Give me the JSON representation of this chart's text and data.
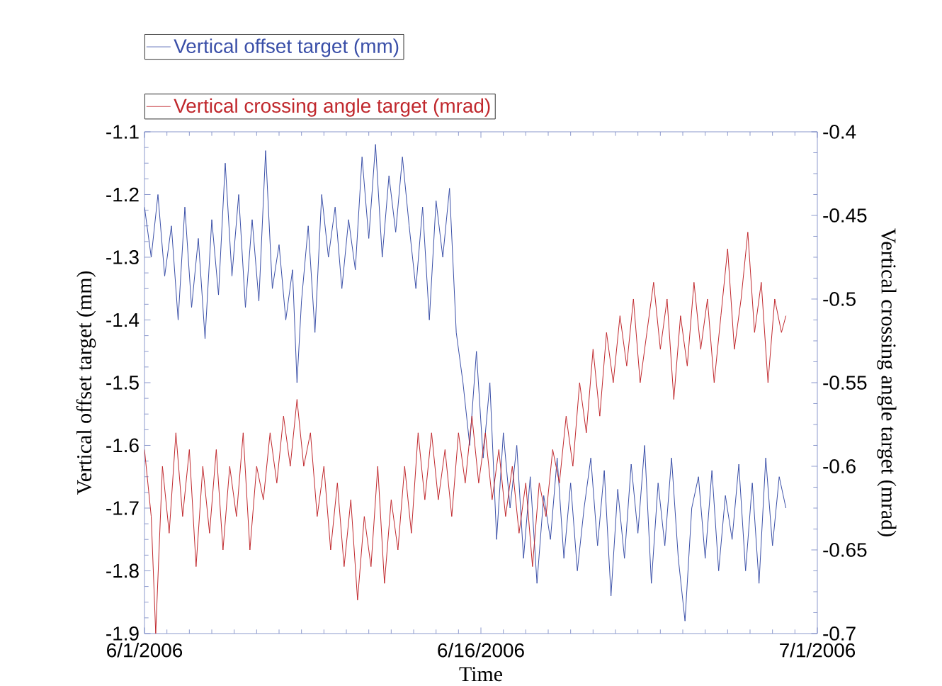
{
  "chart_data": {
    "type": "line",
    "xlabel": "Time",
    "ylabel": "Vertical offset target (mm)",
    "y2label": "Vertical crossing angle target (mrad)",
    "xlim": [
      "2006-06-01",
      "2006-07-01"
    ],
    "xticks": [
      {
        "value": "2006-06-01",
        "label": "6/1/2006"
      },
      {
        "value": "2006-06-16",
        "label": "6/16/2006"
      },
      {
        "value": "2006-07-01",
        "label": "7/1/2006"
      }
    ],
    "ylim": [
      -1.9,
      -1.1
    ],
    "yticks": [
      -1.9,
      -1.8,
      -1.7,
      -1.6,
      -1.5,
      -1.4,
      -1.3,
      -1.2,
      -1.1
    ],
    "y2lim": [
      -0.7,
      -0.4
    ],
    "y2ticks": [
      -0.7,
      -0.65,
      -0.6,
      -0.55,
      -0.5,
      -0.45,
      -0.4
    ],
    "legend": "top left",
    "marker": "none",
    "series": [
      {
        "name": "Vertical offset target (mm)",
        "color": "#3a4fa8",
        "x": [
          "2006-06-01T00:00",
          "2006-06-01T07:12",
          "2006-06-01T14:24",
          "2006-06-01T21:36",
          "2006-06-02T04:48",
          "2006-06-02T12:00",
          "2006-06-02T19:12",
          "2006-06-03T02:24",
          "2006-06-03T09:36",
          "2006-06-03T16:48",
          "2006-06-04T00:00",
          "2006-06-04T07:12",
          "2006-06-04T14:24",
          "2006-06-04T21:36",
          "2006-06-05T04:48",
          "2006-06-05T12:00",
          "2006-06-05T19:12",
          "2006-06-06T02:24",
          "2006-06-06T09:36",
          "2006-06-06T16:48",
          "2006-06-07T00:00",
          "2006-06-07T07:12",
          "2006-06-07T14:24",
          "2006-06-07T19:12",
          "2006-06-08T00:00",
          "2006-06-08T07:12",
          "2006-06-08T14:24",
          "2006-06-08T21:36",
          "2006-06-09T04:48",
          "2006-06-09T12:00",
          "2006-06-09T19:12",
          "2006-06-10T02:24",
          "2006-06-10T09:36",
          "2006-06-10T16:48",
          "2006-06-11T00:00",
          "2006-06-11T07:12",
          "2006-06-11T14:24",
          "2006-06-11T21:36",
          "2006-06-12T04:48",
          "2006-06-12T12:00",
          "2006-06-12T19:12",
          "2006-06-13T02:24",
          "2006-06-13T09:36",
          "2006-06-13T16:48",
          "2006-06-14T00:00",
          "2006-06-14T07:12",
          "2006-06-14T14:24",
          "2006-06-14T21:36",
          "2006-06-15T04:48",
          "2006-06-15T12:00",
          "2006-06-15T19:12",
          "2006-06-16T02:24",
          "2006-06-16T09:36",
          "2006-06-16T16:48",
          "2006-06-17T00:00",
          "2006-06-17T07:12",
          "2006-06-17T14:24",
          "2006-06-17T21:36",
          "2006-06-18T04:48",
          "2006-06-18T12:00",
          "2006-06-18T19:12",
          "2006-06-19T02:24",
          "2006-06-19T09:36",
          "2006-06-19T16:48",
          "2006-06-20T00:00",
          "2006-06-20T07:12",
          "2006-06-20T14:24",
          "2006-06-20T21:36",
          "2006-06-21T04:48",
          "2006-06-21T12:00",
          "2006-06-21T19:12",
          "2006-06-22T02:24",
          "2006-06-22T09:36",
          "2006-06-22T16:48",
          "2006-06-23T00:00",
          "2006-06-23T07:12",
          "2006-06-23T14:24",
          "2006-06-23T21:36",
          "2006-06-24T04:48",
          "2006-06-24T12:00",
          "2006-06-24T19:12",
          "2006-06-25T02:24",
          "2006-06-25T09:36",
          "2006-06-25T16:48",
          "2006-06-26T00:00",
          "2006-06-26T07:12",
          "2006-06-26T14:24",
          "2006-06-26T21:36",
          "2006-06-27T04:48",
          "2006-06-27T12:00",
          "2006-06-27T19:12",
          "2006-06-28T02:24",
          "2006-06-28T09:36",
          "2006-06-28T16:48",
          "2006-06-29T00:00",
          "2006-06-29T07:12",
          "2006-06-29T14:24"
        ],
        "values": [
          -1.22,
          -1.3,
          -1.2,
          -1.33,
          -1.25,
          -1.4,
          -1.22,
          -1.38,
          -1.27,
          -1.43,
          -1.24,
          -1.36,
          -1.15,
          -1.33,
          -1.2,
          -1.38,
          -1.24,
          -1.37,
          -1.13,
          -1.35,
          -1.28,
          -1.4,
          -1.32,
          -1.5,
          -1.37,
          -1.25,
          -1.42,
          -1.2,
          -1.3,
          -1.22,
          -1.35,
          -1.24,
          -1.32,
          -1.14,
          -1.27,
          -1.12,
          -1.3,
          -1.17,
          -1.26,
          -1.14,
          -1.25,
          -1.35,
          -1.22,
          -1.4,
          -1.21,
          -1.3,
          -1.19,
          -1.42,
          -1.5,
          -1.6,
          -1.45,
          -1.62,
          -1.5,
          -1.75,
          -1.58,
          -1.7,
          -1.6,
          -1.78,
          -1.65,
          -1.82,
          -1.68,
          -1.75,
          -1.62,
          -1.78,
          -1.66,
          -1.8,
          -1.7,
          -1.62,
          -1.76,
          -1.64,
          -1.84,
          -1.67,
          -1.78,
          -1.63,
          -1.74,
          -1.6,
          -1.82,
          -1.66,
          -1.76,
          -1.62,
          -1.78,
          -1.88,
          -1.7,
          -1.65,
          -1.78,
          -1.64,
          -1.8,
          -1.68,
          -1.75,
          -1.63,
          -1.8,
          -1.66,
          -1.82,
          -1.62,
          -1.76,
          -1.65,
          -1.7
        ]
      },
      {
        "name": "Vertical crossing angle target (mrad)",
        "color": "#c0282d",
        "axis": "y2",
        "x": [
          "2006-06-01T00:00",
          "2006-06-01T07:12",
          "2006-06-01T12:00",
          "2006-06-01T19:12",
          "2006-06-02T02:24",
          "2006-06-02T09:36",
          "2006-06-02T16:48",
          "2006-06-03T00:00",
          "2006-06-03T07:12",
          "2006-06-03T14:24",
          "2006-06-03T21:36",
          "2006-06-04T04:48",
          "2006-06-04T12:00",
          "2006-06-04T19:12",
          "2006-06-05T02:24",
          "2006-06-05T09:36",
          "2006-06-05T16:48",
          "2006-06-06T00:00",
          "2006-06-06T07:12",
          "2006-06-06T14:24",
          "2006-06-06T21:36",
          "2006-06-07T04:48",
          "2006-06-07T12:00",
          "2006-06-07T19:12",
          "2006-06-08T02:24",
          "2006-06-08T09:36",
          "2006-06-08T16:48",
          "2006-06-09T00:00",
          "2006-06-09T07:12",
          "2006-06-09T14:24",
          "2006-06-09T21:36",
          "2006-06-10T04:48",
          "2006-06-10T12:00",
          "2006-06-10T19:12",
          "2006-06-11T02:24",
          "2006-06-11T09:36",
          "2006-06-11T16:48",
          "2006-06-12T00:00",
          "2006-06-12T07:12",
          "2006-06-12T14:24",
          "2006-06-12T21:36",
          "2006-06-13T04:48",
          "2006-06-13T12:00",
          "2006-06-13T19:12",
          "2006-06-14T02:24",
          "2006-06-14T09:36",
          "2006-06-14T16:48",
          "2006-06-15T00:00",
          "2006-06-15T07:12",
          "2006-06-15T14:24",
          "2006-06-15T21:36",
          "2006-06-16T04:48",
          "2006-06-16T12:00",
          "2006-06-16T19:12",
          "2006-06-17T02:24",
          "2006-06-17T09:36",
          "2006-06-17T16:48",
          "2006-06-18T00:00",
          "2006-06-18T07:12",
          "2006-06-18T14:24",
          "2006-06-18T21:36",
          "2006-06-19T04:48",
          "2006-06-19T12:00",
          "2006-06-19T19:12",
          "2006-06-20T02:24",
          "2006-06-20T09:36",
          "2006-06-20T16:48",
          "2006-06-21T00:00",
          "2006-06-21T07:12",
          "2006-06-21T14:24",
          "2006-06-21T21:36",
          "2006-06-22T04:48",
          "2006-06-22T12:00",
          "2006-06-22T19:12",
          "2006-06-23T02:24",
          "2006-06-23T09:36",
          "2006-06-23T16:48",
          "2006-06-24T00:00",
          "2006-06-24T07:12",
          "2006-06-24T14:24",
          "2006-06-24T21:36",
          "2006-06-25T04:48",
          "2006-06-25T12:00",
          "2006-06-25T19:12",
          "2006-06-26T02:24",
          "2006-06-26T09:36",
          "2006-06-26T16:48",
          "2006-06-27T00:00",
          "2006-06-27T07:12",
          "2006-06-27T14:24",
          "2006-06-27T21:36",
          "2006-06-28T04:48",
          "2006-06-28T12:00",
          "2006-06-28T19:12",
          "2006-06-29T02:24",
          "2006-06-29T09:36",
          "2006-06-29T14:24"
        ],
        "values": [
          -0.59,
          -0.63,
          -0.7,
          -0.6,
          -0.64,
          -0.58,
          -0.63,
          -0.59,
          -0.66,
          -0.6,
          -0.64,
          -0.59,
          -0.65,
          -0.6,
          -0.63,
          -0.58,
          -0.65,
          -0.6,
          -0.62,
          -0.58,
          -0.61,
          -0.57,
          -0.6,
          -0.56,
          -0.6,
          -0.58,
          -0.63,
          -0.6,
          -0.65,
          -0.61,
          -0.66,
          -0.62,
          -0.68,
          -0.63,
          -0.66,
          -0.6,
          -0.67,
          -0.62,
          -0.65,
          -0.6,
          -0.64,
          -0.58,
          -0.62,
          -0.58,
          -0.62,
          -0.59,
          -0.63,
          -0.58,
          -0.61,
          -0.57,
          -0.61,
          -0.58,
          -0.62,
          -0.59,
          -0.63,
          -0.6,
          -0.64,
          -0.61,
          -0.66,
          -0.61,
          -0.63,
          -0.59,
          -0.61,
          -0.57,
          -0.6,
          -0.55,
          -0.58,
          -0.53,
          -0.57,
          -0.52,
          -0.55,
          -0.51,
          -0.54,
          -0.5,
          -0.55,
          -0.52,
          -0.49,
          -0.53,
          -0.5,
          -0.56,
          -0.51,
          -0.54,
          -0.49,
          -0.53,
          -0.5,
          -0.55,
          -0.51,
          -0.47,
          -0.53,
          -0.5,
          -0.46,
          -0.52,
          -0.49,
          -0.55,
          -0.5,
          -0.52,
          -0.51
        ]
      }
    ]
  }
}
